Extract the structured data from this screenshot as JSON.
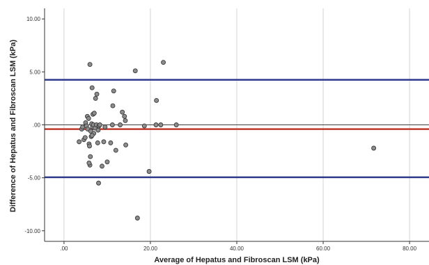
{
  "chart_data": {
    "type": "scatter",
    "title": "",
    "xlabel": "Average of Hepatus and Fibroscan LSM (kPa)",
    "ylabel": "Difference of Hepatus and Fibroscan LSM (kPa)",
    "xlim": [
      -4.5,
      84.5
    ],
    "ylim": [
      -11,
      11
    ],
    "x_ticks": [
      0,
      20,
      40,
      60,
      80
    ],
    "x_tick_labels": [
      ".00",
      "20.00",
      "40.00",
      "60.00",
      "80.00"
    ],
    "y_ticks": [
      10,
      5,
      0,
      -5,
      -10
    ],
    "y_tick_labels": [
      "10.00",
      "5.00",
      ".00",
      "-5.00",
      "-10.00"
    ],
    "grid": "vertical",
    "reference_lines": [
      {
        "y": 0,
        "color": "#3d3d3d",
        "role": "zero"
      },
      {
        "y": -0.4,
        "color": "#c0392b",
        "role": "mean-difference"
      },
      {
        "y": 4.25,
        "color": "#2e3a8c",
        "role": "upper-limit-of-agreement"
      },
      {
        "y": -4.95,
        "color": "#2e3a8c",
        "role": "lower-limit-of-agreement"
      }
    ],
    "point_color": "#8c8c8c",
    "point_edge": "#3a3a3a",
    "points": [
      [
        3.5,
        -1.6
      ],
      [
        4.1,
        -0.4
      ],
      [
        4.3,
        -0.2
      ],
      [
        4.6,
        -1.4
      ],
      [
        4.9,
        -1.2
      ],
      [
        5.0,
        0.2
      ],
      [
        5.2,
        -0.1
      ],
      [
        5.4,
        0.8
      ],
      [
        5.5,
        -0.4
      ],
      [
        5.7,
        0.6
      ],
      [
        5.8,
        -1.8
      ],
      [
        5.9,
        -2.0
      ],
      [
        6.0,
        5.7
      ],
      [
        6.1,
        -3.0
      ],
      [
        6.2,
        -0.6
      ],
      [
        6.3,
        -1.1
      ],
      [
        6.4,
        0.1
      ],
      [
        6.5,
        3.5
      ],
      [
        6.6,
        -0.2
      ],
      [
        6.7,
        1.0
      ],
      [
        6.8,
        0.0
      ],
      [
        6.9,
        -0.8
      ],
      [
        7.0,
        1.1
      ],
      [
        7.2,
        -0.3
      ],
      [
        7.3,
        2.5
      ],
      [
        7.5,
        0.0
      ],
      [
        7.6,
        2.9
      ],
      [
        7.8,
        -1.7
      ],
      [
        8.0,
        -5.5
      ],
      [
        8.1,
        -0.1
      ],
      [
        8.3,
        0.0
      ],
      [
        6.0,
        -3.8
      ],
      [
        5.8,
        -3.6
      ],
      [
        6.5,
        -1.0
      ],
      [
        7.9,
        -0.5
      ],
      [
        8.8,
        -3.9
      ],
      [
        9.2,
        -1.6
      ],
      [
        9.5,
        -0.2
      ],
      [
        10.0,
        -3.5
      ],
      [
        10.8,
        -1.7
      ],
      [
        11.2,
        0.0
      ],
      [
        11.3,
        1.8
      ],
      [
        11.5,
        3.2
      ],
      [
        12.0,
        -2.4
      ],
      [
        13.0,
        0.0
      ],
      [
        13.5,
        1.2
      ],
      [
        14.0,
        0.8
      ],
      [
        14.2,
        0.4
      ],
      [
        14.3,
        -1.9
      ],
      [
        16.5,
        5.1
      ],
      [
        17.0,
        -8.8
      ],
      [
        18.6,
        -0.1
      ],
      [
        19.7,
        -4.4
      ],
      [
        21.3,
        0.0
      ],
      [
        21.4,
        2.3
      ],
      [
        22.4,
        0.0
      ],
      [
        23.0,
        5.9
      ],
      [
        26.0,
        0.0
      ],
      [
        71.7,
        -2.2
      ]
    ]
  }
}
